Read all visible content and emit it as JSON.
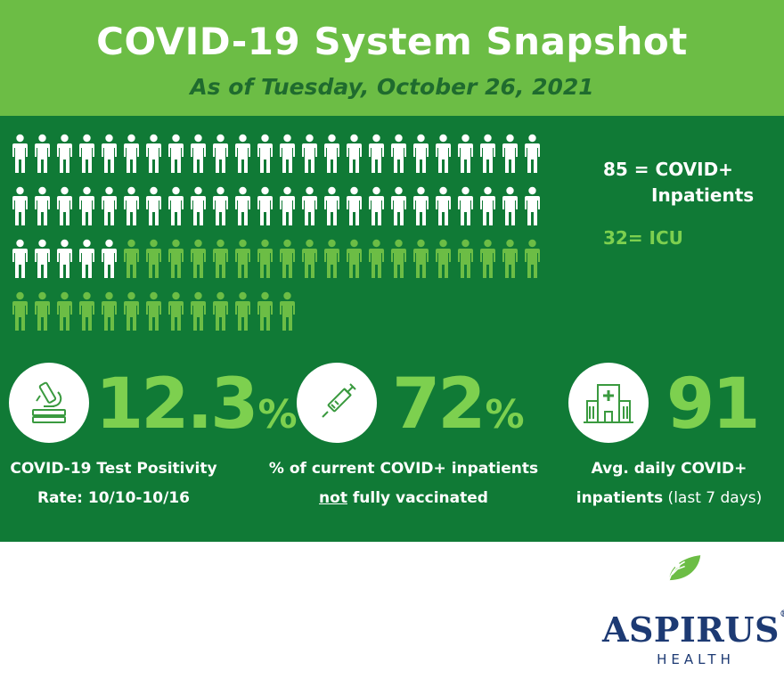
{
  "header": {
    "title": "COVID-19 System Snapshot",
    "subtitle": "As of Tuesday, October 26, 2021"
  },
  "people": {
    "total_icons": 85,
    "icu_icons": 32,
    "non_icu_icons": 53,
    "white_color": "#ffffff",
    "icu_color": "#6cbd45"
  },
  "legend": {
    "total_line1": "85 = COVID+",
    "total_line2": "Inpatients",
    "icu": "32= ICU"
  },
  "stats": [
    {
      "icon": "microscope-icon",
      "value": "12.3",
      "suffix": "%",
      "label_line1": "COVID-19 Test Positivity",
      "label_line2": "Rate: 10/10-10/16"
    },
    {
      "icon": "syringe-icon",
      "value": "72",
      "suffix": "%",
      "label_line1": "% of current COVID+ inpatients",
      "label_line2_underlined": "not",
      "label_line2_rest": " fully vaccinated"
    },
    {
      "icon": "hospital-icon",
      "value": "91",
      "label_line1": "Avg. daily COVID+",
      "label_line2_bold": "inpatients",
      "label_line2_rest": " (last 7 days)"
    }
  ],
  "logo": {
    "name": "ASPIRUS",
    "sub": "HEALTH"
  },
  "colors": {
    "header_bg": "#6cbd45",
    "panel_bg": "#107a36",
    "accent": "#7dd04f",
    "logo_blue": "#1d3a73"
  }
}
